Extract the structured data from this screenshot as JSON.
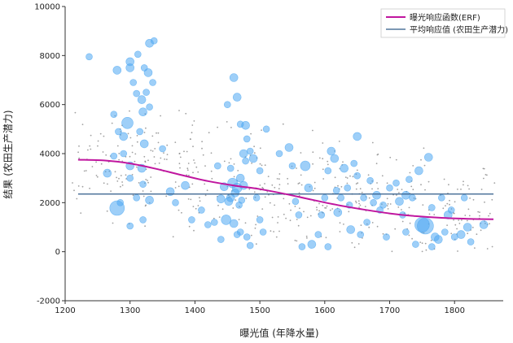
{
  "chart_data": {
    "type": "scatter",
    "title": "",
    "xlabel": "曝光值 (年降水量)",
    "ylabel": "结果 (农田生产潜力)",
    "xlim": [
      1200,
      1875
    ],
    "ylim": [
      -2000,
      10000
    ],
    "x_ticks": [
      1200,
      1300,
      1400,
      1500,
      1600,
      1700,
      1800
    ],
    "y_ticks": [
      -2000,
      0,
      2000,
      4000,
      6000,
      8000,
      10000
    ],
    "x_tick_labels": [
      "1200",
      "1300",
      "1400",
      "1500",
      "1600",
      "1700",
      "1800"
    ],
    "y_tick_labels": [
      "-2000",
      "0",
      "2000",
      "4000",
      "6000",
      "8000",
      "10000"
    ],
    "grid": false,
    "legend_position": "top-right",
    "colors": {
      "erf_line": "#c0169f",
      "mean_line": "#2e5a88",
      "bubbles": "#4ea8f2",
      "dots": "#888888"
    },
    "series": [
      {
        "name": "曝光响应函数(ERF)",
        "type": "line",
        "x": [
          1220,
          1260,
          1300,
          1340,
          1380,
          1420,
          1460,
          1500,
          1540,
          1580,
          1620,
          1660,
          1700,
          1740,
          1780,
          1820,
          1860
        ],
        "y": [
          3750,
          3720,
          3600,
          3380,
          3120,
          2880,
          2700,
          2550,
          2350,
          2120,
          1900,
          1720,
          1560,
          1450,
          1380,
          1340,
          1320
        ]
      },
      {
        "name": "平均响应值 (农田生产潜力)",
        "type": "hline",
        "y": 2350,
        "x_range": [
          1220,
          1860
        ]
      },
      {
        "name": "",
        "type": "bubble",
        "points": [
          [
            1237,
            7950,
            4
          ],
          [
            1280,
            7400,
            5
          ],
          [
            1300,
            7500,
            5
          ],
          [
            1330,
            8500,
            5
          ],
          [
            1337,
            8600,
            4
          ],
          [
            1300,
            7750,
            5
          ],
          [
            1312,
            8050,
            4
          ],
          [
            1322,
            7500,
            4
          ],
          [
            1328,
            7300,
            5
          ],
          [
            1335,
            6900,
            4
          ],
          [
            1305,
            6900,
            4
          ],
          [
            1310,
            6450,
            4
          ],
          [
            1318,
            6200,
            5
          ],
          [
            1325,
            6500,
            4
          ],
          [
            1330,
            5900,
            4
          ],
          [
            1320,
            5700,
            5
          ],
          [
            1275,
            5600,
            4
          ],
          [
            1296,
            5250,
            7
          ],
          [
            1282,
            4900,
            4
          ],
          [
            1290,
            4700,
            5
          ],
          [
            1315,
            4900,
            4
          ],
          [
            1322,
            4400,
            5
          ],
          [
            1290,
            4000,
            4
          ],
          [
            1275,
            3900,
            4
          ],
          [
            1300,
            3500,
            5
          ],
          [
            1318,
            3400,
            5
          ],
          [
            1300,
            3000,
            4
          ],
          [
            1310,
            2200,
            4
          ],
          [
            1320,
            2750,
            4
          ],
          [
            1265,
            3200,
            5
          ],
          [
            1280,
            1780,
            9
          ],
          [
            1285,
            2000,
            4
          ],
          [
            1320,
            1300,
            4
          ],
          [
            1300,
            1050,
            4
          ],
          [
            1330,
            2100,
            5
          ],
          [
            1350,
            4200,
            4
          ],
          [
            1362,
            2450,
            5
          ],
          [
            1370,
            2000,
            4
          ],
          [
            1385,
            2700,
            5
          ],
          [
            1395,
            1300,
            4
          ],
          [
            1410,
            1700,
            4
          ],
          [
            1420,
            1100,
            4
          ],
          [
            1430,
            1200,
            4
          ],
          [
            1440,
            2150,
            5
          ],
          [
            1445,
            2650,
            5
          ],
          [
            1448,
            1300,
            6
          ],
          [
            1452,
            2050,
            5
          ],
          [
            1455,
            3400,
            4
          ],
          [
            1458,
            2800,
            6
          ],
          [
            1462,
            2400,
            5
          ],
          [
            1465,
            2600,
            6
          ],
          [
            1468,
            1900,
            4
          ],
          [
            1470,
            3000,
            5
          ],
          [
            1472,
            2100,
            4
          ],
          [
            1475,
            2700,
            5
          ],
          [
            1450,
            6000,
            4
          ],
          [
            1460,
            7100,
            5
          ],
          [
            1465,
            6300,
            5
          ],
          [
            1470,
            5200,
            4
          ],
          [
            1478,
            5150,
            5
          ],
          [
            1475,
            4000,
            5
          ],
          [
            1478,
            3700,
            4
          ],
          [
            1480,
            4600,
            4
          ],
          [
            1485,
            4100,
            4
          ],
          [
            1490,
            3800,
            5
          ],
          [
            1495,
            2200,
            4
          ],
          [
            1455,
            2200,
            5
          ],
          [
            1460,
            1150,
            5
          ],
          [
            1465,
            700,
            4
          ],
          [
            1470,
            800,
            4
          ],
          [
            1480,
            600,
            4
          ],
          [
            1485,
            250,
            4
          ],
          [
            1500,
            1300,
            4
          ],
          [
            1505,
            800,
            4
          ],
          [
            1510,
            5000,
            4
          ],
          [
            1500,
            3300,
            4
          ],
          [
            1530,
            4000,
            4
          ],
          [
            1545,
            4250,
            5
          ],
          [
            1550,
            3500,
            4
          ],
          [
            1555,
            2050,
            4
          ],
          [
            1560,
            1500,
            4
          ],
          [
            1565,
            200,
            4
          ],
          [
            1570,
            3500,
            6
          ],
          [
            1575,
            2600,
            5
          ],
          [
            1580,
            300,
            5
          ],
          [
            1590,
            700,
            4
          ],
          [
            1595,
            1500,
            4
          ],
          [
            1600,
            2200,
            4
          ],
          [
            1605,
            3300,
            4
          ],
          [
            1610,
            4100,
            5
          ],
          [
            1615,
            3800,
            5
          ],
          [
            1618,
            2500,
            4
          ],
          [
            1620,
            1600,
            5
          ],
          [
            1625,
            2200,
            4
          ],
          [
            1630,
            3400,
            5
          ],
          [
            1635,
            2600,
            4
          ],
          [
            1638,
            1900,
            4
          ],
          [
            1640,
            900,
            5
          ],
          [
            1645,
            3600,
            4
          ],
          [
            1650,
            4700,
            5
          ],
          [
            1650,
            3100,
            4
          ],
          [
            1655,
            700,
            4
          ],
          [
            1660,
            2200,
            4
          ],
          [
            1665,
            1200,
            4
          ],
          [
            1670,
            2900,
            4
          ],
          [
            1675,
            2000,
            4
          ],
          [
            1680,
            2300,
            5
          ],
          [
            1685,
            1700,
            4
          ],
          [
            1690,
            1900,
            4
          ],
          [
            1695,
            600,
            4
          ],
          [
            1700,
            2600,
            4
          ],
          [
            1710,
            2800,
            4
          ],
          [
            1715,
            2050,
            5
          ],
          [
            1720,
            1500,
            4
          ],
          [
            1725,
            2300,
            5
          ],
          [
            1730,
            2950,
            4
          ],
          [
            1735,
            2200,
            4
          ],
          [
            1740,
            300,
            4
          ],
          [
            1745,
            3300,
            5
          ],
          [
            1750,
            1100,
            9
          ],
          [
            1755,
            1050,
            10
          ],
          [
            1760,
            3850,
            5
          ],
          [
            1765,
            1800,
            4
          ],
          [
            1770,
            600,
            5
          ],
          [
            1775,
            500,
            5
          ],
          [
            1780,
            2200,
            4
          ],
          [
            1785,
            800,
            4
          ],
          [
            1790,
            1500,
            5
          ],
          [
            1795,
            1700,
            4
          ],
          [
            1800,
            600,
            4
          ],
          [
            1810,
            700,
            5
          ],
          [
            1815,
            2200,
            4
          ],
          [
            1820,
            1000,
            5
          ],
          [
            1825,
            400,
            4
          ],
          [
            1845,
            1100,
            5
          ],
          [
            1765,
            200,
            4
          ],
          [
            1725,
            800,
            4
          ],
          [
            1605,
            200,
            4
          ],
          [
            1435,
            3500,
            4
          ],
          [
            1440,
            500,
            4
          ]
        ]
      }
    ]
  },
  "legend": {
    "erf": "曝光响应函数(ERF)",
    "mean": "平均响应值 (农田生产潜力)"
  },
  "axes": {
    "xlabel": "曝光值 (年降水量)",
    "ylabel": "结果 (农田生产潜力)"
  }
}
